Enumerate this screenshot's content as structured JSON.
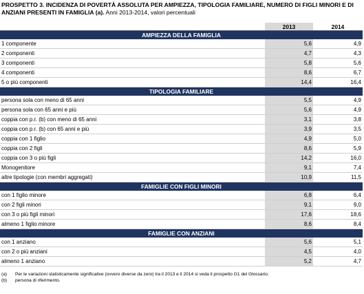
{
  "header": {
    "title": "PROSPETTO 3. INCIDENZA DI POVERTÀ ASSOLUTA PER AMPIEZZA, TIPOLOGIA FAMILIARE, NUMERO DI FIGLI MINORI E DI ANZIANI PRESENTI IN FAMIGLIA (a).",
    "subtitle": "Anni 2013-2014, valori percentuali"
  },
  "table": {
    "columns": [
      "2013",
      "2014"
    ],
    "sections": [
      {
        "title": "AMPIEZZA DELLA FAMIGLIA",
        "rows": [
          {
            "label": "1 componente",
            "values": [
              "5,6",
              "4,9"
            ]
          },
          {
            "label": "2 componenti",
            "values": [
              "4,7",
              "4,3"
            ]
          },
          {
            "label": "3 componenti",
            "values": [
              "5,8",
              "5,6"
            ]
          },
          {
            "label": "4 componenti",
            "values": [
              "8,6",
              "6,7"
            ]
          },
          {
            "label": "5 o più componenti",
            "values": [
              "14,4",
              "16,4"
            ]
          }
        ]
      },
      {
        "title": "TIPOLOGIA FAMILIARE",
        "rows": [
          {
            "label": "persona sola con meno di 65 anni",
            "values": [
              "5,5",
              "4,9"
            ]
          },
          {
            "label": "persona sola con  65 anni e più",
            "values": [
              "5,6",
              "4,9"
            ]
          },
          {
            "label": "coppia con p.r. (b) con meno di 65 anni",
            "values": [
              "3,1",
              "3,8"
            ]
          },
          {
            "label": "coppia con p.r. (b) con 65 anni e più",
            "values": [
              "3,9",
              "3,5"
            ]
          },
          {
            "label": "coppia con 1 figlio",
            "values": [
              "4,9",
              "5,0"
            ]
          },
          {
            "label": "coppia con 2 figli",
            "values": [
              "8,6",
              "5,9"
            ]
          },
          {
            "label": "coppia con 3 o più  figli",
            "values": [
              "14,2",
              "16,0"
            ]
          },
          {
            "label": "Monogenitore",
            "values": [
              "9,1",
              "7,4"
            ]
          },
          {
            "label": "altre tipologie (con membri aggregati)",
            "values": [
              "10,9",
              "11,5"
            ]
          }
        ]
      },
      {
        "title": "FAMIGLIE CON FIGLI MINORI",
        "rows": [
          {
            "label": "con 1 figlio minore",
            "values": [
              "6,8",
              "6,4"
            ]
          },
          {
            "label": "con 2 figli minori",
            "values": [
              "9,1",
              "9,0"
            ]
          },
          {
            "label": "con 3 o più figli minori",
            "values": [
              "17,6",
              "18,6"
            ]
          },
          {
            "label": "almeno 1 figlio minore",
            "values": [
              "8,6",
              "8,4"
            ]
          }
        ]
      },
      {
        "title": "FAMIGLIE CON ANZIANI",
        "rows": [
          {
            "label": "con 1 anziano",
            "values": [
              "5,6",
              "5,1"
            ]
          },
          {
            "label": "con 2 o più anziani",
            "values": [
              "4,5",
              "4,0"
            ]
          },
          {
            "label": "almeno 1 anziano",
            "values": [
              "5,2",
              "4,7"
            ]
          }
        ]
      }
    ]
  },
  "footnotes": [
    {
      "mark": "(a)",
      "text": "Per le variazioni statisticamente significative (ovvero diverse da zero) tra il 2013 e il 2014 si veda il prospetto G1 del Glossario."
    },
    {
      "mark": "(b)",
      "text": "persona di riferimento."
    }
  ]
}
